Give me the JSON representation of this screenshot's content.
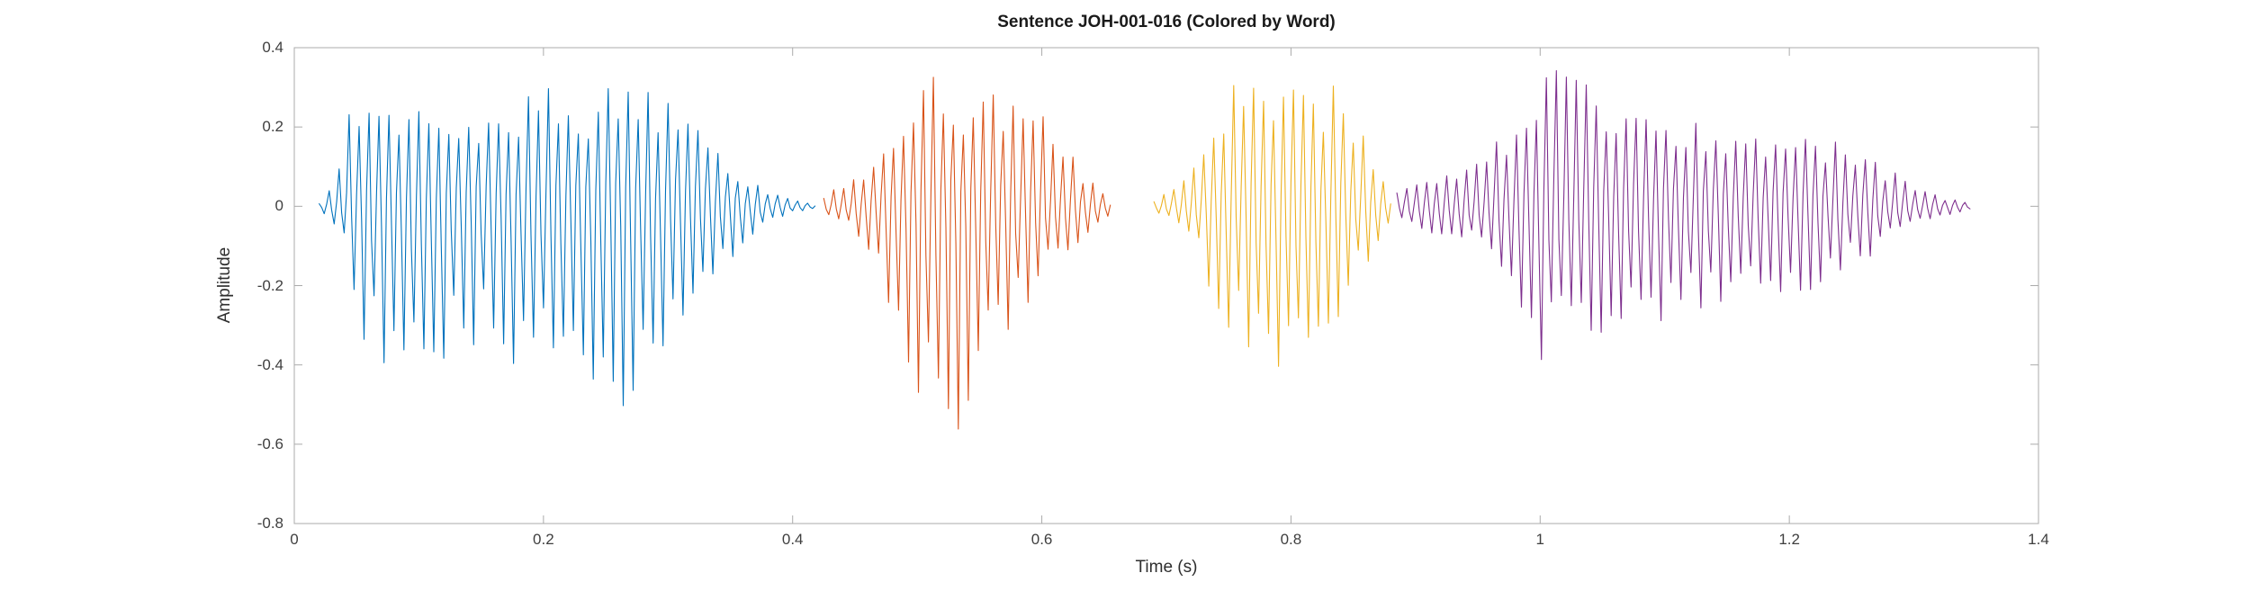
{
  "page": {
    "background": "#ffffff"
  },
  "chart_data": {
    "type": "line",
    "subtype": "audio-waveform",
    "title": "Sentence JOH-001-016 (Colored by Word)",
    "xlabel": "Time (s)",
    "ylabel": "Amplitude",
    "xlim": [
      0,
      1.4
    ],
    "ylim": [
      -0.8,
      0.4
    ],
    "xticks": [
      0,
      0.2,
      0.4,
      0.6,
      0.8,
      1,
      1.2,
      1.4
    ],
    "xtick_labels": [
      "0",
      "0.2",
      "0.4",
      "0.6",
      "0.8",
      "1",
      "1.2",
      "1.4"
    ],
    "yticks": [
      -0.8,
      -0.6,
      -0.4,
      -0.2,
      0,
      0.2,
      0.4
    ],
    "ytick_labels": [
      "-0.8",
      "-0.6",
      "-0.4",
      "-0.2",
      "0",
      "0.2",
      "0.4"
    ],
    "grid": false,
    "legend": "none",
    "box": true,
    "axis_color": "#ababab",
    "tick_label_color": "#3f3f3f",
    "pitch_period_s": 0.008,
    "segments": [
      {
        "name": "word-1",
        "color": "#0072BD",
        "envelope": [
          [
            0.02,
            0.01,
            -0.01
          ],
          [
            0.035,
            0.1,
            -0.06
          ],
          [
            0.045,
            0.3,
            -0.18
          ],
          [
            0.055,
            0.26,
            -0.33
          ],
          [
            0.07,
            0.23,
            -0.44
          ],
          [
            0.09,
            0.26,
            -0.45
          ],
          [
            0.11,
            0.27,
            -0.42
          ],
          [
            0.13,
            0.25,
            -0.38
          ],
          [
            0.15,
            0.26,
            -0.35
          ],
          [
            0.17,
            0.28,
            -0.4
          ],
          [
            0.195,
            0.32,
            -0.4
          ],
          [
            0.22,
            0.28,
            -0.44
          ],
          [
            0.245,
            0.3,
            -0.45
          ],
          [
            0.27,
            0.33,
            -0.52
          ],
          [
            0.285,
            0.3,
            -0.53
          ],
          [
            0.3,
            0.37,
            -0.42
          ],
          [
            0.315,
            0.3,
            -0.33
          ],
          [
            0.33,
            0.22,
            -0.25
          ],
          [
            0.35,
            0.12,
            -0.14
          ],
          [
            0.37,
            0.06,
            -0.07
          ],
          [
            0.39,
            0.03,
            -0.03
          ],
          [
            0.41,
            0.01,
            -0.01
          ],
          [
            0.42,
            0.005,
            -0.005
          ]
        ]
      },
      {
        "name": "word-2",
        "color": "#D95319",
        "envelope": [
          [
            0.425,
            0.03,
            -0.03
          ],
          [
            0.44,
            0.06,
            -0.05
          ],
          [
            0.455,
            0.1,
            -0.09
          ],
          [
            0.47,
            0.2,
            -0.22
          ],
          [
            0.485,
            0.27,
            -0.35
          ],
          [
            0.5,
            0.33,
            -0.48
          ],
          [
            0.515,
            0.36,
            -0.6
          ],
          [
            0.525,
            0.35,
            -0.64
          ],
          [
            0.54,
            0.3,
            -0.52
          ],
          [
            0.555,
            0.28,
            -0.4
          ],
          [
            0.57,
            0.29,
            -0.33
          ],
          [
            0.585,
            0.3,
            -0.28
          ],
          [
            0.6,
            0.24,
            -0.22
          ],
          [
            0.615,
            0.17,
            -0.15
          ],
          [
            0.63,
            0.11,
            -0.09
          ],
          [
            0.645,
            0.06,
            -0.05
          ],
          [
            0.655,
            0.02,
            -0.02
          ]
        ]
      },
      {
        "name": "word-3",
        "color": "#EDB120",
        "envelope": [
          [
            0.69,
            0.02,
            -0.02
          ],
          [
            0.705,
            0.04,
            -0.04
          ],
          [
            0.72,
            0.09,
            -0.09
          ],
          [
            0.735,
            0.18,
            -0.22
          ],
          [
            0.75,
            0.3,
            -0.33
          ],
          [
            0.765,
            0.33,
            -0.4
          ],
          [
            0.78,
            0.28,
            -0.48
          ],
          [
            0.795,
            0.32,
            -0.5
          ],
          [
            0.81,
            0.31,
            -0.46
          ],
          [
            0.825,
            0.32,
            -0.38
          ],
          [
            0.84,
            0.33,
            -0.28
          ],
          [
            0.855,
            0.2,
            -0.18
          ],
          [
            0.87,
            0.1,
            -0.1
          ],
          [
            0.88,
            0.03,
            -0.03
          ]
        ]
      },
      {
        "name": "word-4",
        "color": "#7E2F8E",
        "envelope": [
          [
            0.885,
            0.04,
            -0.04
          ],
          [
            0.905,
            0.07,
            -0.07
          ],
          [
            0.925,
            0.08,
            -0.08
          ],
          [
            0.945,
            0.1,
            -0.1
          ],
          [
            0.96,
            0.14,
            -0.13
          ],
          [
            0.975,
            0.24,
            -0.2
          ],
          [
            0.99,
            0.32,
            -0.34
          ],
          [
            1.005,
            0.4,
            -0.41
          ],
          [
            1.02,
            0.34,
            -0.38
          ],
          [
            1.04,
            0.33,
            -0.36
          ],
          [
            1.06,
            0.32,
            -0.34
          ],
          [
            1.08,
            0.3,
            -0.31
          ],
          [
            1.1,
            0.26,
            -0.29
          ],
          [
            1.12,
            0.23,
            -0.28
          ],
          [
            1.14,
            0.21,
            -0.26
          ],
          [
            1.16,
            0.21,
            -0.25
          ],
          [
            1.18,
            0.22,
            -0.24
          ],
          [
            1.2,
            0.21,
            -0.23
          ],
          [
            1.22,
            0.2,
            -0.21
          ],
          [
            1.24,
            0.18,
            -0.18
          ],
          [
            1.26,
            0.15,
            -0.14
          ],
          [
            1.28,
            0.1,
            -0.09
          ],
          [
            1.3,
            0.05,
            -0.05
          ],
          [
            1.32,
            0.03,
            -0.03
          ],
          [
            1.345,
            0.01,
            -0.01
          ]
        ]
      }
    ]
  }
}
